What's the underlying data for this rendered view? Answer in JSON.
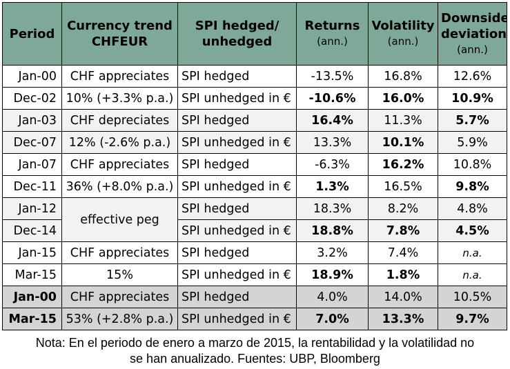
{
  "headers": {
    "period": "Period",
    "trend_line1": "Currency trend",
    "trend_line2": "CHFEUR",
    "instrument_line1": "SPI hedged/",
    "instrument_line2": "unhedged",
    "returns": "Returns",
    "returns_unit": "(ann.)",
    "volatility": "Volatility",
    "volatility_unit": "(ann.)",
    "downside_line1": "Downside",
    "downside_line2": "deviation",
    "downside_unit": "(ann.)"
  },
  "groups": [
    {
      "start": "Jan-00",
      "end": "Dec-02",
      "trend_line1": "CHF appreciates",
      "trend_line2": "10% (+3.3% p.a.)",
      "rows": [
        {
          "instrument": "SPI hedged",
          "returns": "-13.5%",
          "volatility": "16.8%",
          "downside": "12.6%"
        },
        {
          "instrument": "SPI unhedged in €",
          "returns": "-10.6%",
          "volatility": "16.0%",
          "downside": "10.9%"
        }
      ]
    },
    {
      "start": "Jan-03",
      "end": "Dec-07",
      "trend_line1": "CHF depreciates",
      "trend_line2": "12% (-2.6% p.a.)",
      "rows": [
        {
          "instrument": "SPI hedged",
          "returns": "16.4%",
          "volatility": "11.3%",
          "downside": "5.7%"
        },
        {
          "instrument": "SPI unhedged in €",
          "returns": "13.3%",
          "volatility": "10.1%",
          "downside": "5.9%"
        }
      ]
    },
    {
      "start": "Jan-07",
      "end": "Dec-11",
      "trend_line1": "CHF appreciates",
      "trend_line2": "36% (+8.0% p.a.)",
      "rows": [
        {
          "instrument": "SPI hedged",
          "returns": "-6.3%",
          "volatility": "16.2%",
          "downside": "10.8%"
        },
        {
          "instrument": "SPI unhedged in €",
          "returns": "1.3%",
          "volatility": "16.5%",
          "downside": "9.8%"
        }
      ]
    },
    {
      "start": "Jan-12",
      "end": "Dec-14",
      "trend_line1": "effective peg",
      "rows": [
        {
          "instrument": "SPI hedged",
          "returns": "18.3%",
          "volatility": "8.2%",
          "downside": "4.8%"
        },
        {
          "instrument": "SPI unhedged in €",
          "returns": "18.8%",
          "volatility": "7.8%",
          "downside": "4.5%"
        }
      ]
    },
    {
      "start": "Jan-15",
      "end": "Mar-15",
      "trend_line1": "CHF appreciates",
      "trend_line2": "15%",
      "rows": [
        {
          "instrument": "SPI hedged",
          "returns": "3.2%",
          "volatility": "7.4%",
          "downside": "n.a."
        },
        {
          "instrument": "SPI unhedged in €",
          "returns": "18.9%",
          "volatility": "1.8%",
          "downside": "n.a."
        }
      ]
    },
    {
      "start": "Jan-00",
      "end": "Mar-15",
      "trend_line1": "CHF appreciates",
      "trend_line2": "53% (+2.8% p.a.)",
      "rows": [
        {
          "instrument": "SPI hedged",
          "returns": "4.0%",
          "volatility": "14.0%",
          "downside": "10.5%"
        },
        {
          "instrument": "SPI unhedged in €",
          "returns": "7.0%",
          "volatility": "13.3%",
          "downside": "9.7%"
        }
      ]
    }
  ],
  "note_line1": "Nota: En el periodo de enero a marzo de 2015, la rentabilidad y la volatilidad no",
  "note_line2": "se han anualizado. Fuentes: UBP, Bloomberg",
  "colors": {
    "header_bg": "#7ea998",
    "alt_row_bg": "#f2f2f2",
    "total_row_bg": "#d4d4d4"
  }
}
